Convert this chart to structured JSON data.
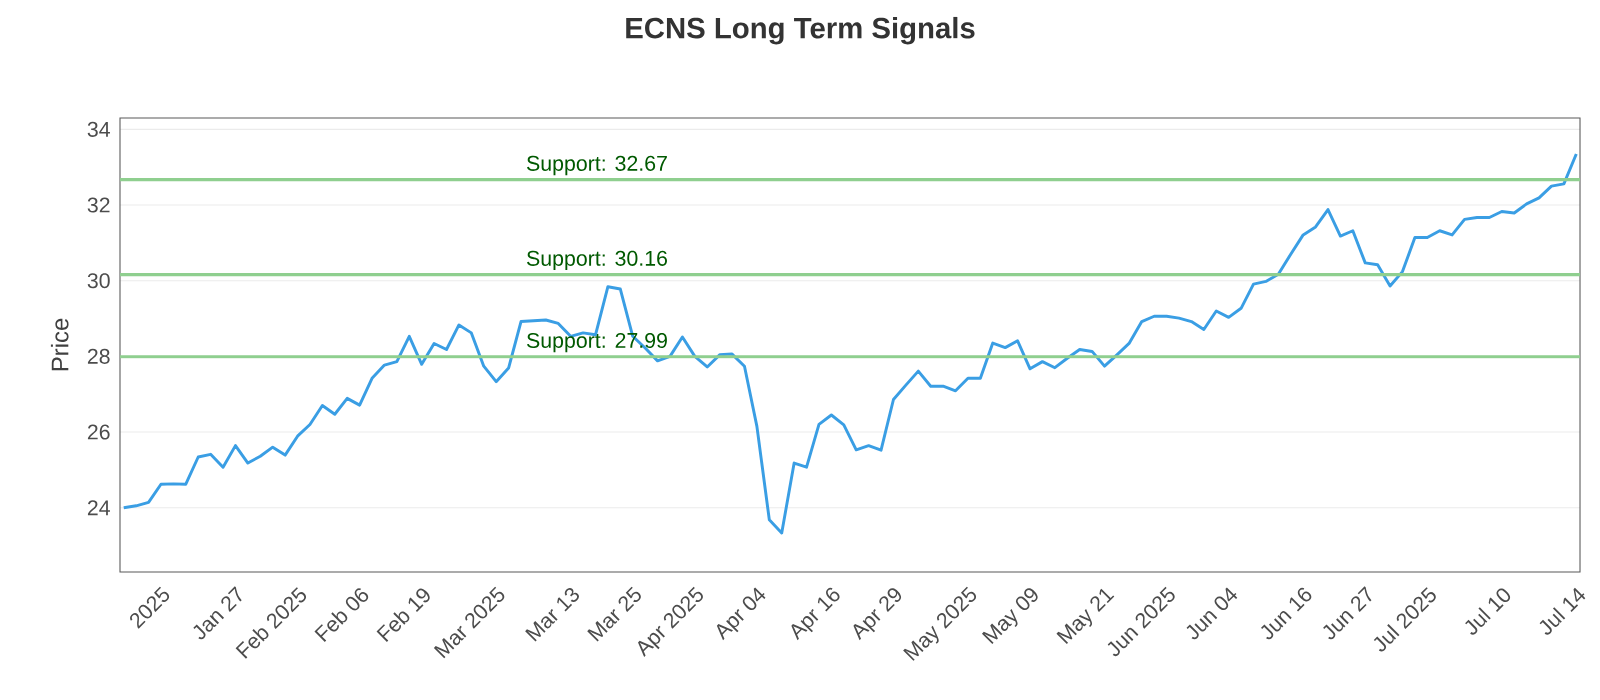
{
  "chart_data": {
    "type": "line",
    "title": "ECNS Long Term Signals",
    "ylabel": "Price",
    "categories": [
      null,
      null,
      null,
      "2025",
      null,
      null,
      null,
      null,
      null,
      "Jan 27",
      null,
      null,
      null,
      null,
      "Feb 2025",
      null,
      null,
      null,
      null,
      "Feb 06",
      null,
      null,
      null,
      null,
      "Feb 19",
      null,
      null,
      null,
      null,
      null,
      "Mar 2025",
      null,
      null,
      null,
      null,
      null,
      "Mar 13",
      null,
      null,
      null,
      null,
      "Mar 25",
      null,
      null,
      null,
      null,
      "Apr 2025",
      null,
      null,
      null,
      null,
      "Apr 04",
      null,
      null,
      null,
      null,
      null,
      "Apr 16",
      null,
      null,
      null,
      null,
      "Apr 29",
      null,
      null,
      null,
      null,
      null,
      "May 2025",
      null,
      null,
      null,
      null,
      "May 09",
      null,
      null,
      null,
      null,
      null,
      "May 21",
      null,
      null,
      null,
      null,
      "Jun 2025",
      null,
      null,
      null,
      null,
      "Jun 04",
      null,
      null,
      null,
      null,
      null,
      "Jun 16",
      null,
      null,
      null,
      null,
      "Jun 27",
      null,
      null,
      null,
      null,
      "Jul 2025",
      null,
      null,
      null,
      null,
      null,
      "Jul 10",
      null,
      null,
      null,
      null,
      null,
      "Jul 14"
    ],
    "series": [
      {
        "color": "#3a9ee4",
        "values": [
          24.0,
          24.05,
          24.14,
          24.62,
          24.63,
          24.62,
          25.34,
          25.41,
          25.07,
          25.64,
          25.18,
          25.36,
          25.6,
          25.39,
          25.89,
          26.2,
          26.7,
          26.47,
          26.89,
          26.71,
          27.42,
          27.77,
          27.86,
          28.53,
          27.79,
          28.34,
          28.18,
          28.83,
          28.62,
          27.74,
          27.33,
          27.69,
          28.92,
          28.94,
          28.96,
          28.87,
          28.53,
          28.62,
          28.57,
          29.84,
          29.78,
          28.53,
          28.22,
          27.88,
          28.0,
          28.51,
          28.0,
          27.72,
          28.04,
          28.06,
          27.74,
          26.15,
          23.68,
          23.33,
          25.18,
          25.07,
          26.2,
          26.45,
          26.19,
          25.53,
          25.64,
          25.52,
          26.86,
          27.24,
          27.61,
          27.21,
          27.21,
          27.09,
          27.42,
          27.42,
          28.35,
          28.23,
          28.41,
          27.67,
          27.86,
          27.7,
          27.95,
          28.18,
          28.13,
          27.74,
          28.04,
          28.35,
          28.92,
          29.06,
          29.06,
          29.01,
          28.92,
          28.71,
          29.2,
          29.03,
          29.27,
          29.91,
          29.98,
          30.17,
          30.7,
          31.21,
          31.42,
          31.88,
          31.18,
          31.32,
          30.47,
          30.42,
          29.86,
          30.24,
          31.14,
          31.14,
          31.32,
          31.21,
          31.62,
          31.67,
          31.67,
          31.83,
          31.79,
          32.03,
          32.19,
          32.5,
          32.56,
          33.35
        ]
      }
    ],
    "ylim": [
      22.3,
      34.3
    ],
    "yticks": [
      24,
      26,
      28,
      30,
      32,
      34
    ],
    "grid": "y",
    "marker": "none",
    "line_style": "solid",
    "ref_lines": [
      {
        "axis": "y",
        "value": 32.67,
        "label": "Support: 32.67",
        "color": "#8fcf8f"
      },
      {
        "axis": "y",
        "value": 30.16,
        "label": "Support: 30.16",
        "color": "#8fcf8f"
      },
      {
        "axis": "y",
        "value": 27.99,
        "label": "Support: 27.99",
        "color": "#8fcf8f"
      }
    ]
  }
}
